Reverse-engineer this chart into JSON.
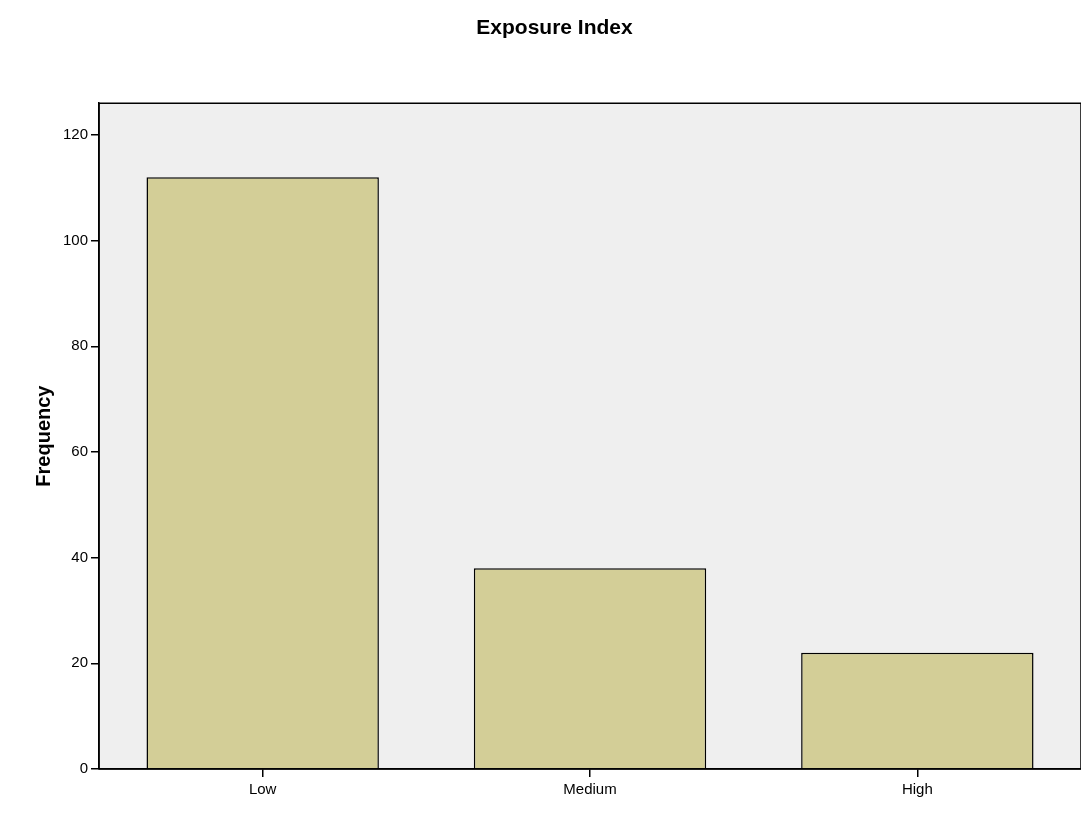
{
  "chart_data": {
    "type": "bar",
    "title": "Exposure Index",
    "ylabel": "Frequency",
    "categories": [
      "Low",
      "Medium",
      "High"
    ],
    "values": [
      112,
      38,
      22
    ],
    "color": "#d3ce97",
    "ylim": [
      0,
      126
    ],
    "yticks": [
      0,
      20,
      40,
      60,
      80,
      100,
      120
    ],
    "grid": false,
    "legend": false
  }
}
